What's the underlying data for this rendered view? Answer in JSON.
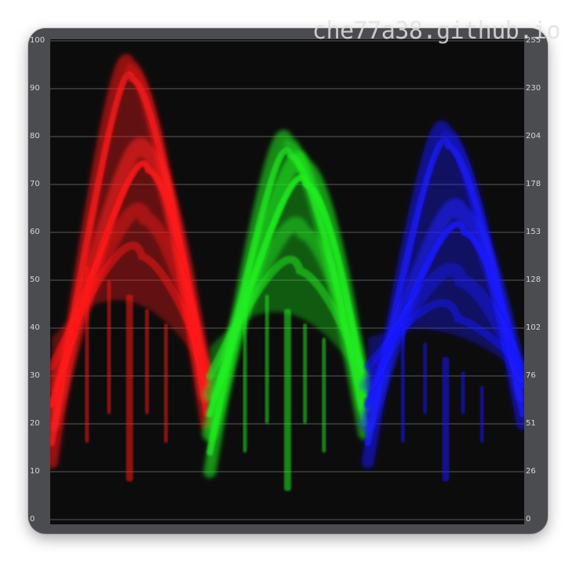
{
  "watermark": "che77a38.github.io",
  "chart_data": {
    "type": "rgb-parade-waveform",
    "left_axis": {
      "min": 0,
      "max": 100,
      "ticks": [
        "0",
        "10",
        "20",
        "30",
        "40",
        "50",
        "60",
        "70",
        "80",
        "90",
        "100"
      ]
    },
    "right_axis": {
      "min": 0,
      "max": 255,
      "ticks": [
        "0",
        "26",
        "51",
        "76",
        "102",
        "128",
        "153",
        "178",
        "204",
        "230",
        "255"
      ]
    },
    "grid": true,
    "channels": [
      {
        "name": "R",
        "color": "#ff1a1a",
        "peak_percent": 95,
        "inner_arc_peak_percent": 77,
        "min_percent": 8
      },
      {
        "name": "G",
        "color": "#22ee22",
        "peak_percent": 79,
        "inner_arc_peak_percent": 74,
        "min_percent": 6
      },
      {
        "name": "B",
        "color": "#1a1aff",
        "peak_percent": 81,
        "inner_arc_peak_percent": 64,
        "min_percent": 8
      }
    ]
  }
}
